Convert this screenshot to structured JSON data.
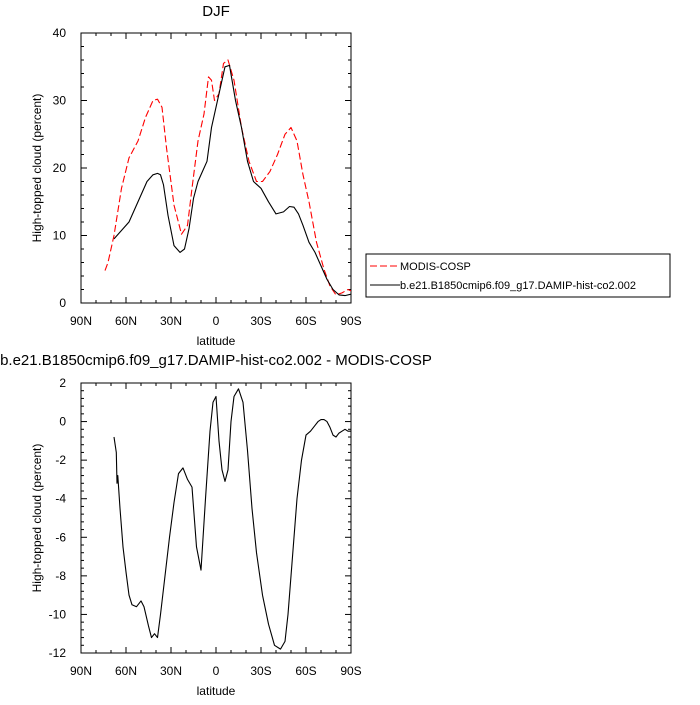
{
  "chart_data": [
    {
      "type": "line",
      "title": "DJF",
      "xlabel": "latitude",
      "ylabel": "High-topped cloud (percent)",
      "xlim": [
        90,
        -90
      ],
      "ylim": [
        0,
        40
      ],
      "x_ticks": [
        90,
        60,
        30,
        0,
        -30,
        -60,
        -90
      ],
      "x_tick_labels": [
        "90N",
        "60N",
        "30N",
        "0",
        "30S",
        "60S",
        "90S"
      ],
      "y_ticks": [
        0,
        10,
        20,
        30,
        40
      ],
      "y_tick_labels": [
        "0",
        "10",
        "20",
        "30",
        "40"
      ],
      "grid": false,
      "legend_position": "right",
      "series": [
        {
          "name": "MODIS-COSP",
          "color": "#ff0000",
          "dash": "dashed",
          "x": [
            74,
            72,
            68,
            63,
            58,
            52,
            47,
            42,
            39,
            36,
            33,
            28,
            23,
            19,
            16,
            12,
            8,
            5,
            3,
            1,
            -2,
            -5,
            -8,
            -12,
            -17,
            -22,
            -27,
            -31,
            -36,
            -41,
            -46,
            -50,
            -54,
            -58,
            -62,
            -67,
            -72,
            -76,
            -80,
            -84,
            -88,
            -90
          ],
          "y": [
            4.8,
            6,
            10,
            17,
            21.5,
            24,
            27.5,
            30,
            30.2,
            29,
            23,
            14.5,
            10.2,
            11.5,
            17,
            24,
            28,
            33.5,
            33,
            30,
            31,
            35.5,
            36,
            33,
            26,
            21,
            18,
            18,
            19.5,
            22,
            25,
            26,
            24,
            19,
            15,
            9,
            5,
            2.5,
            1.2,
            1.5,
            2,
            1.8
          ]
        },
        {
          "name": "b.e21.B1850cmip6.f09_g17.DAMIP-hist-co2.002",
          "color": "#000000",
          "dash": "solid",
          "x": [
            68,
            66,
            62,
            58,
            54,
            50,
            46,
            42,
            39,
            37,
            35,
            32,
            28,
            24,
            21,
            18,
            15,
            12,
            9,
            6,
            3,
            0,
            -3,
            -6,
            -9,
            -13,
            -17,
            -21,
            -25,
            -30,
            -35,
            -40,
            -45,
            -49,
            -52,
            -55,
            -58,
            -62,
            -66,
            -70,
            -74,
            -78,
            -82,
            -86,
            -90
          ],
          "y": [
            9.5,
            10,
            11,
            12,
            14,
            16,
            18,
            19,
            19.2,
            19,
            17.5,
            13,
            8.5,
            7.5,
            8,
            11,
            15.5,
            18,
            19.5,
            21,
            26,
            29,
            32,
            35,
            35.2,
            30,
            26,
            21,
            18,
            17,
            15,
            13.2,
            13.5,
            14.3,
            14.2,
            13.2,
            11.5,
            9,
            7.5,
            5.5,
            3.5,
            2,
            1.2,
            1.1,
            1.3
          ]
        }
      ]
    },
    {
      "type": "line",
      "title": "b.e21.B1850cmip6.f09_g17.DAMIP-hist-co2.002 - MODIS-COSP",
      "xlabel": "latitude",
      "ylabel": "High-topped cloud (percent)",
      "xlim": [
        90,
        -90
      ],
      "ylim": [
        -12,
        2
      ],
      "x_ticks": [
        90,
        60,
        30,
        0,
        -30,
        -60,
        -90
      ],
      "x_tick_labels": [
        "90N",
        "60N",
        "30N",
        "0",
        "30S",
        "60S",
        "90S"
      ],
      "y_ticks": [
        -12,
        -10,
        -8,
        -6,
        -4,
        -2,
        0,
        2
      ],
      "y_tick_labels": [
        "-12",
        "-10",
        "-8",
        "-6",
        "-4",
        "-2",
        "0",
        "2"
      ],
      "grid": false,
      "series": [
        {
          "color": "#000000",
          "dash": "solid",
          "x": [
            68,
            66.5,
            66,
            65.5,
            64,
            62,
            60,
            58,
            56,
            53,
            50,
            48,
            45,
            43,
            41,
            39,
            37,
            34,
            31,
            28,
            25,
            22,
            19,
            16,
            13,
            10,
            7,
            4,
            2,
            0,
            -2,
            -4,
            -6,
            -8,
            -10,
            -12,
            -15,
            -18,
            -21,
            -24,
            -27,
            -31,
            -35,
            -39,
            -43,
            -46,
            -48,
            -50,
            -52,
            -54,
            -57,
            -60,
            -63,
            -66,
            -68,
            -70,
            -72,
            -74,
            -76,
            -78,
            -80,
            -82,
            -84,
            -86,
            -88,
            -90
          ],
          "y": [
            -0.8,
            -1.6,
            -3.2,
            -2.8,
            -4.5,
            -6.5,
            -7.8,
            -9,
            -9.5,
            -9.6,
            -9.3,
            -9.6,
            -10.6,
            -11.2,
            -11,
            -11.2,
            -10,
            -8,
            -6,
            -4.2,
            -2.7,
            -2.4,
            -3,
            -3.4,
            -6.5,
            -7.7,
            -4,
            -0.5,
            1,
            1.3,
            -1,
            -2.5,
            -3.1,
            -2.5,
            0,
            1.3,
            1.7,
            1,
            -1.5,
            -4.5,
            -6.8,
            -9,
            -10.5,
            -11.6,
            -11.8,
            -11.4,
            -10,
            -8,
            -6,
            -4,
            -2,
            -0.7,
            -0.5,
            -0.2,
            0,
            0.1,
            0.1,
            0,
            -0.3,
            -0.7,
            -0.8,
            -0.6,
            -0.5,
            -0.4,
            -0.5,
            -0.5
          ]
        }
      ]
    }
  ]
}
